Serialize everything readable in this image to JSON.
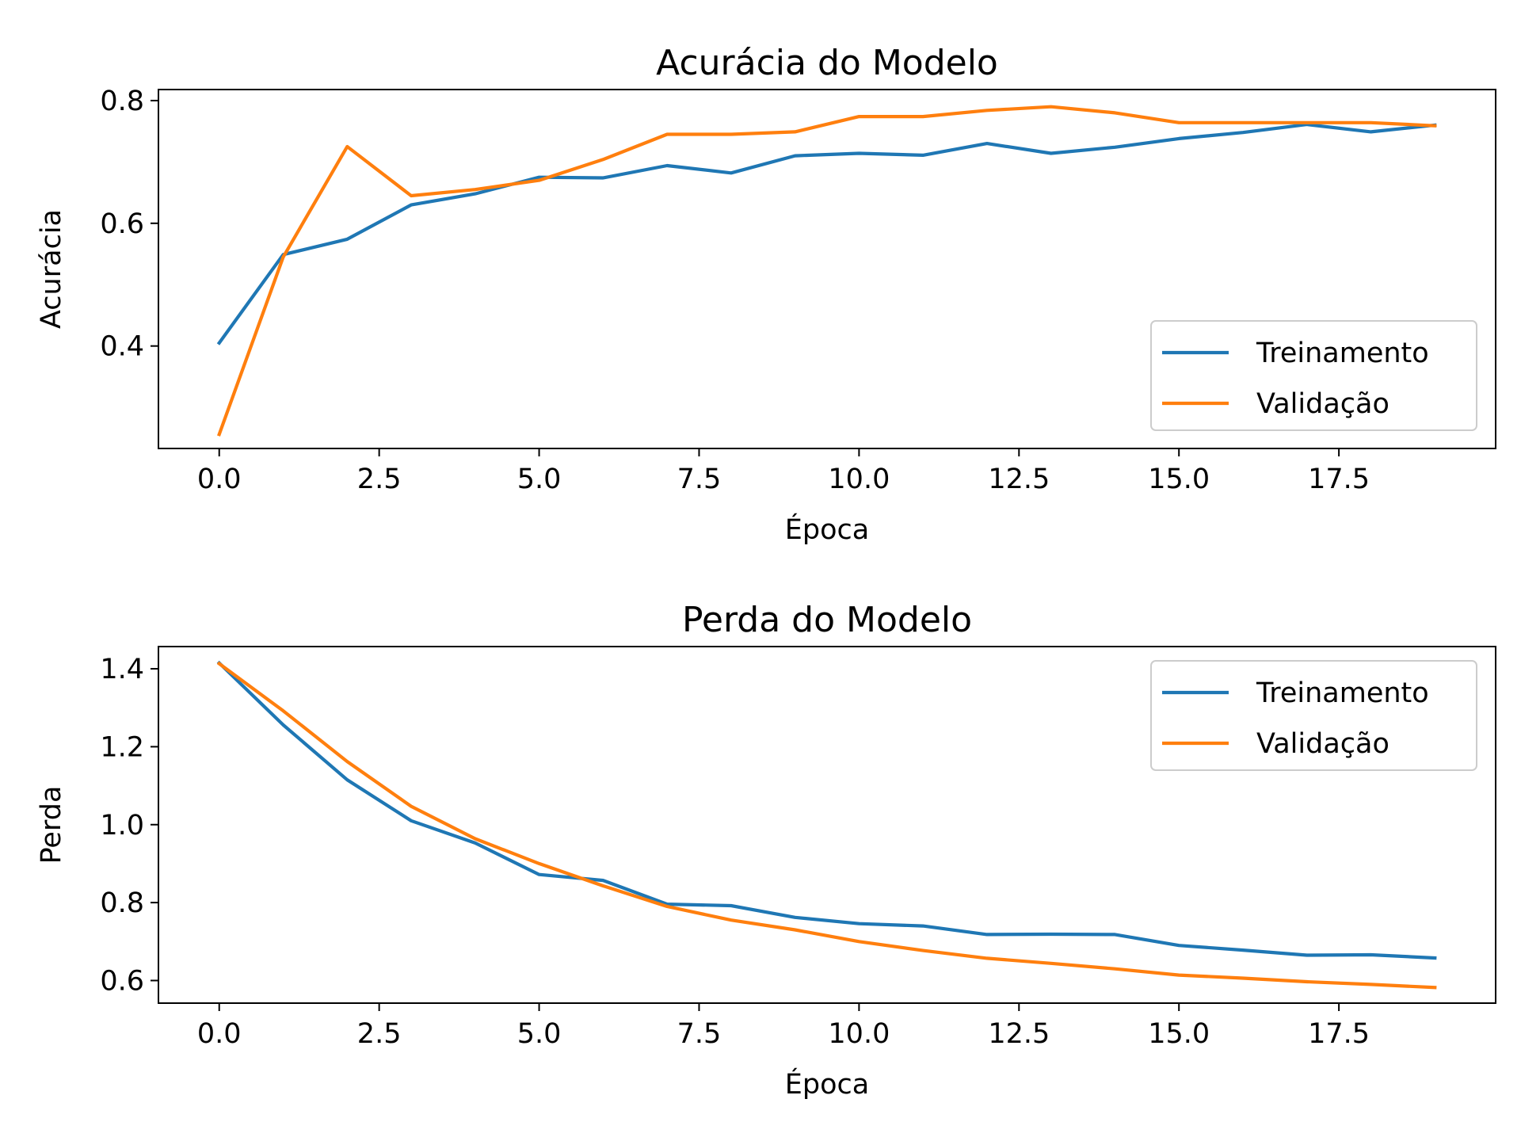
{
  "chart_data": [
    {
      "type": "line",
      "title": "Acurácia do Modelo",
      "xlabel": "Época",
      "ylabel": "Acurácia",
      "xlim": [
        -0.95,
        19.95
      ],
      "ylim": [
        0.233,
        0.818
      ],
      "xticks": [
        0.0,
        2.5,
        5.0,
        7.5,
        10.0,
        12.5,
        15.0,
        17.5
      ],
      "xtick_labels": [
        "0.0",
        "2.5",
        "5.0",
        "7.5",
        "10.0",
        "12.5",
        "15.0",
        "17.5"
      ],
      "yticks": [
        0.4,
        0.6,
        0.8
      ],
      "ytick_labels": [
        "0.4",
        "0.6",
        "0.8"
      ],
      "legend_position": "lower-right",
      "x": [
        0,
        1,
        2,
        3,
        4,
        5,
        6,
        7,
        8,
        9,
        10,
        11,
        12,
        13,
        14,
        15,
        16,
        17,
        18,
        19
      ],
      "series": [
        {
          "name": "Treinamento",
          "color": "#1f77b4",
          "values": [
            0.405,
            0.549,
            0.574,
            0.63,
            0.648,
            0.675,
            0.674,
            0.694,
            0.682,
            0.71,
            0.714,
            0.711,
            0.73,
            0.714,
            0.724,
            0.738,
            0.748,
            0.761,
            0.749,
            0.76
          ]
        },
        {
          "name": "Validação",
          "color": "#ff7f0e",
          "values": [
            0.256,
            0.545,
            0.725,
            0.645,
            0.655,
            0.67,
            0.704,
            0.745,
            0.745,
            0.749,
            0.774,
            0.774,
            0.784,
            0.79,
            0.78,
            0.764,
            0.764,
            0.764,
            0.764,
            0.759
          ]
        }
      ]
    },
    {
      "type": "line",
      "title": "Perda do Modelo",
      "xlabel": "Época",
      "ylabel": "Perda",
      "xlim": [
        -0.95,
        19.95
      ],
      "ylim": [
        0.542,
        1.457
      ],
      "xticks": [
        0.0,
        2.5,
        5.0,
        7.5,
        10.0,
        12.5,
        15.0,
        17.5
      ],
      "xtick_labels": [
        "0.0",
        "2.5",
        "5.0",
        "7.5",
        "10.0",
        "12.5",
        "15.0",
        "17.5"
      ],
      "yticks": [
        0.6,
        0.8,
        1.0,
        1.2,
        1.4
      ],
      "ytick_labels": [
        "0.6",
        "0.8",
        "1.0",
        "1.2",
        "1.4"
      ],
      "legend_position": "upper-right",
      "x": [
        0,
        1,
        2,
        3,
        4,
        5,
        6,
        7,
        8,
        9,
        10,
        11,
        12,
        13,
        14,
        15,
        16,
        17,
        18,
        19
      ],
      "series": [
        {
          "name": "Treinamento",
          "color": "#1f77b4",
          "values": [
            1.415,
            1.256,
            1.115,
            1.01,
            0.953,
            0.872,
            0.857,
            0.796,
            0.792,
            0.762,
            0.746,
            0.74,
            0.718,
            0.719,
            0.718,
            0.69,
            0.678,
            0.665,
            0.666,
            0.658
          ]
        },
        {
          "name": "Validação",
          "color": "#ff7f0e",
          "values": [
            1.413,
            1.292,
            1.162,
            1.047,
            0.964,
            0.9,
            0.843,
            0.79,
            0.755,
            0.73,
            0.7,
            0.677,
            0.657,
            0.644,
            0.63,
            0.614,
            0.606,
            0.597,
            0.59,
            0.582
          ]
        }
      ]
    }
  ]
}
